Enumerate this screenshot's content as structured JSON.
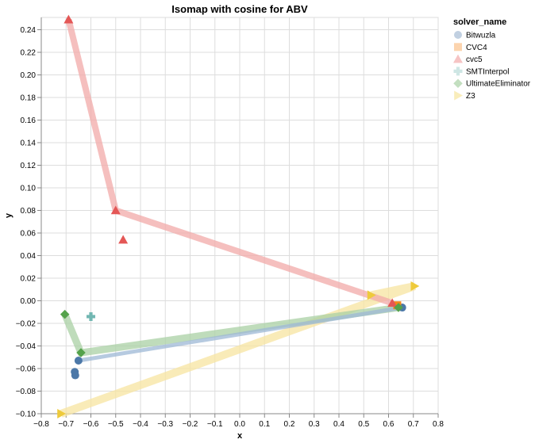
{
  "chart_data": {
    "type": "scatter",
    "title": "Isomap with cosine for ABV",
    "xlabel": "x",
    "ylabel": "y",
    "xlim": [
      -0.8,
      0.8
    ],
    "ylim": [
      -0.1,
      0.25
    ],
    "x_ticks": [
      "−0.8",
      "−0.7",
      "−0.6",
      "−0.5",
      "−0.4",
      "−0.3",
      "−0.2",
      "−0.1",
      "0.0",
      "0.1",
      "0.2",
      "0.3",
      "0.4",
      "0.5",
      "0.6",
      "0.7",
      "0.8"
    ],
    "x_tick_values": [
      -0.8,
      -0.7,
      -0.6,
      -0.5,
      -0.4,
      -0.3,
      -0.2,
      -0.1,
      0.0,
      0.1,
      0.2,
      0.3,
      0.4,
      0.5,
      0.6,
      0.7,
      0.8
    ],
    "y_ticks": [
      "−0.10",
      "−0.08",
      "−0.06",
      "−0.04",
      "−0.02",
      "0.00",
      "0.02",
      "0.04",
      "0.06",
      "0.08",
      "0.10",
      "0.12",
      "0.14",
      "0.16",
      "0.18",
      "0.20",
      "0.22",
      "0.24"
    ],
    "y_tick_values": [
      -0.1,
      -0.08,
      -0.06,
      -0.04,
      -0.02,
      0.0,
      0.02,
      0.04,
      0.06,
      0.08,
      0.1,
      0.12,
      0.14,
      0.16,
      0.18,
      0.2,
      0.22,
      0.24
    ],
    "grid": true,
    "legend": {
      "title": "solver_name",
      "placement": "right"
    },
    "series": [
      {
        "name": "Bitwuzla",
        "marker": "circle",
        "color": "#4c78a8",
        "trail_color": "#9eb8d6",
        "points": [
          [
            0.655,
            -0.006
          ],
          [
            -0.65,
            -0.053
          ],
          [
            -0.665,
            -0.063
          ],
          [
            -0.663,
            -0.066
          ]
        ],
        "trail": [
          [
            0.655,
            -0.006
          ],
          [
            -0.65,
            -0.053
          ]
        ]
      },
      {
        "name": "CVC4",
        "marker": "square",
        "color": "#f58518",
        "trail_color": "#fbbf8a",
        "points": [
          [
            0.635,
            -0.004
          ]
        ],
        "trail": []
      },
      {
        "name": "cvc5",
        "marker": "triangle-up",
        "color": "#e45756",
        "trail_color": "#f2a9a8",
        "points": [
          [
            -0.69,
            0.249
          ],
          [
            -0.5,
            0.08
          ],
          [
            -0.47,
            0.054
          ],
          [
            0.615,
            -0.002
          ]
        ],
        "trail": [
          [
            -0.69,
            0.249
          ],
          [
            -0.5,
            0.08
          ],
          [
            0.615,
            -0.002
          ]
        ]
      },
      {
        "name": "SMTInterpol",
        "marker": "cross",
        "color": "#72b7b2",
        "trail_color": "#b9dbd8",
        "points": [
          [
            -0.6,
            -0.014
          ]
        ],
        "trail": []
      },
      {
        "name": "UltimateEliminator",
        "marker": "diamond",
        "color": "#54a24b",
        "trail_color": "#a9d0a4",
        "points": [
          [
            -0.705,
            -0.012
          ],
          [
            -0.64,
            -0.046
          ],
          [
            0.64,
            -0.006
          ]
        ],
        "trail": [
          [
            -0.705,
            -0.012
          ],
          [
            -0.64,
            -0.046
          ],
          [
            0.64,
            -0.006
          ]
        ]
      },
      {
        "name": "Z3",
        "marker": "triangle-right",
        "color": "#eeca3b",
        "trail_color": "#f7e4a0",
        "points": [
          [
            -0.72,
            -0.1
          ],
          [
            0.53,
            0.005
          ],
          [
            0.705,
            0.013
          ]
        ],
        "trail": [
          [
            -0.72,
            -0.1
          ],
          [
            0.705,
            0.013
          ],
          [
            0.53,
            0.005
          ]
        ]
      }
    ]
  }
}
